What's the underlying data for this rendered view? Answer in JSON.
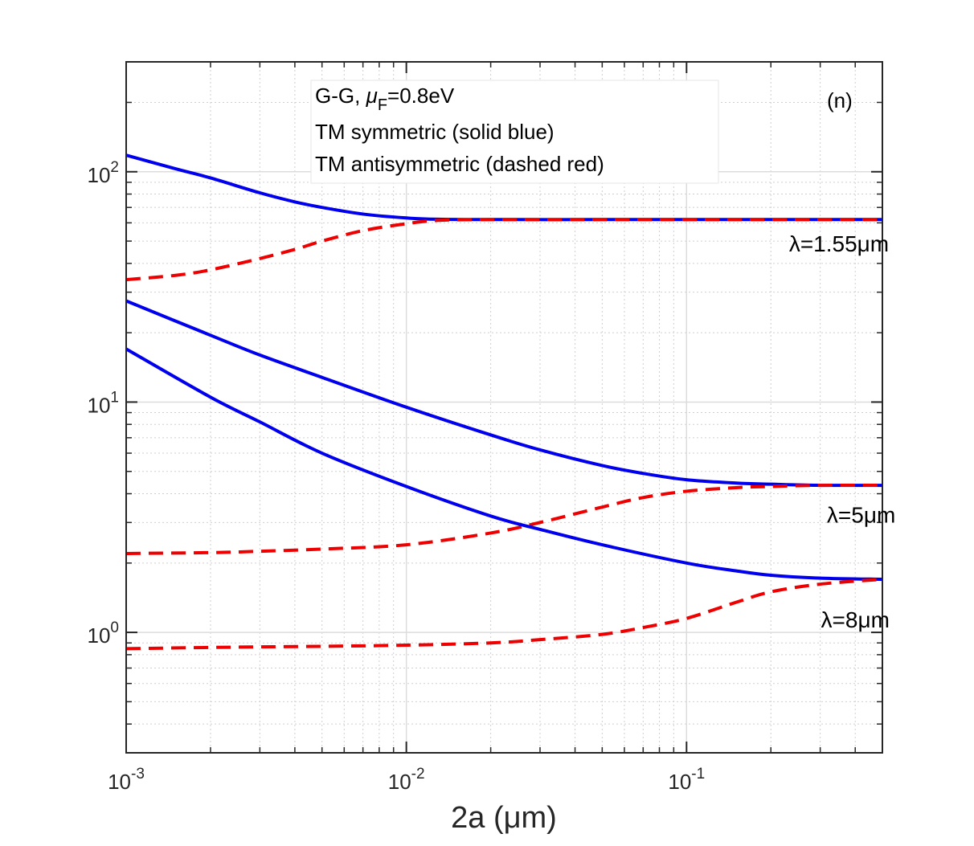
{
  "chart_data": {
    "type": "line",
    "xscale": "log",
    "yscale": "log",
    "xlim": [
      0.001,
      0.5
    ],
    "ylim": [
      0.3,
      300
    ],
    "xlabel": "2a  (μm)",
    "ylabel": "",
    "grid": true,
    "panel_label": "(n)",
    "legend": {
      "line1_prefix": "G-G,  ",
      "line1_mu": "μ",
      "line1_sub": "F",
      "line1_value": "=0.8eV",
      "line2": "TM symmetric (solid blue)",
      "line3": "TM antisymmetric (dashed red)"
    },
    "x_ticks": [
      {
        "value": 0.001,
        "base": "10",
        "exp": "-3"
      },
      {
        "value": 0.01,
        "base": "10",
        "exp": "-2"
      },
      {
        "value": 0.1,
        "base": "10",
        "exp": "-1"
      }
    ],
    "y_ticks": [
      {
        "value": 1,
        "base": "10",
        "exp": "0"
      },
      {
        "value": 10,
        "base": "10",
        "exp": "1"
      },
      {
        "value": 100,
        "base": "10",
        "exp": "2"
      }
    ],
    "curve_labels": [
      {
        "text": "λ=1.55μm",
        "x": 0.35,
        "y": 45
      },
      {
        "text": "λ=5μm",
        "x": 0.42,
        "y": 3.0
      },
      {
        "text": "λ=8μm",
        "x": 0.4,
        "y": 1.05
      }
    ],
    "series": [
      {
        "name": "TM symmetric λ=1.55μm",
        "style": "solid",
        "color": "#0000ee",
        "x": [
          0.001,
          0.0015,
          0.002,
          0.003,
          0.004,
          0.005,
          0.007,
          0.01,
          0.013,
          0.02,
          0.05,
          0.1,
          0.5
        ],
        "y": [
          118,
          103,
          94,
          81,
          74,
          70,
          65.5,
          63,
          62.2,
          62,
          62,
          62,
          62
        ]
      },
      {
        "name": "TM antisymmetric λ=1.55μm",
        "style": "dashed",
        "color": "#ee0000",
        "x": [
          0.001,
          0.0015,
          0.002,
          0.003,
          0.004,
          0.005,
          0.007,
          0.01,
          0.013,
          0.02,
          0.05,
          0.1,
          0.5
        ],
        "y": [
          34,
          35.5,
          37.5,
          42,
          46,
          50,
          55.5,
          59.5,
          61.5,
          62,
          62,
          62,
          62
        ]
      },
      {
        "name": "TM symmetric λ=5μm",
        "style": "solid",
        "color": "#0000ee",
        "x": [
          0.001,
          0.002,
          0.003,
          0.005,
          0.01,
          0.02,
          0.03,
          0.05,
          0.07,
          0.1,
          0.15,
          0.2,
          0.3,
          0.5
        ],
        "y": [
          27.5,
          19.5,
          16,
          12.8,
          9.5,
          7.2,
          6.2,
          5.3,
          4.9,
          4.6,
          4.45,
          4.4,
          4.35,
          4.35
        ]
      },
      {
        "name": "TM antisymmetric λ=5μm",
        "style": "dashed",
        "color": "#ee0000",
        "x": [
          0.001,
          0.002,
          0.003,
          0.005,
          0.01,
          0.02,
          0.03,
          0.05,
          0.07,
          0.1,
          0.15,
          0.2,
          0.3,
          0.5
        ],
        "y": [
          2.2,
          2.22,
          2.25,
          2.3,
          2.4,
          2.7,
          3.0,
          3.5,
          3.85,
          4.1,
          4.25,
          4.3,
          4.35,
          4.35
        ]
      },
      {
        "name": "TM symmetric λ=8μm",
        "style": "solid",
        "color": "#0000ee",
        "x": [
          0.001,
          0.002,
          0.003,
          0.005,
          0.01,
          0.02,
          0.03,
          0.05,
          0.1,
          0.15,
          0.2,
          0.3,
          0.5
        ],
        "y": [
          17,
          10.5,
          8.2,
          6.0,
          4.3,
          3.2,
          2.8,
          2.4,
          2.0,
          1.85,
          1.77,
          1.72,
          1.7
        ]
      },
      {
        "name": "TM antisymmetric λ=8μm",
        "style": "dashed",
        "color": "#ee0000",
        "x": [
          0.001,
          0.002,
          0.003,
          0.005,
          0.01,
          0.02,
          0.03,
          0.05,
          0.07,
          0.1,
          0.15,
          0.2,
          0.3,
          0.5
        ],
        "y": [
          0.85,
          0.86,
          0.865,
          0.87,
          0.88,
          0.9,
          0.93,
          0.98,
          1.05,
          1.15,
          1.35,
          1.5,
          1.62,
          1.7
        ]
      }
    ]
  }
}
